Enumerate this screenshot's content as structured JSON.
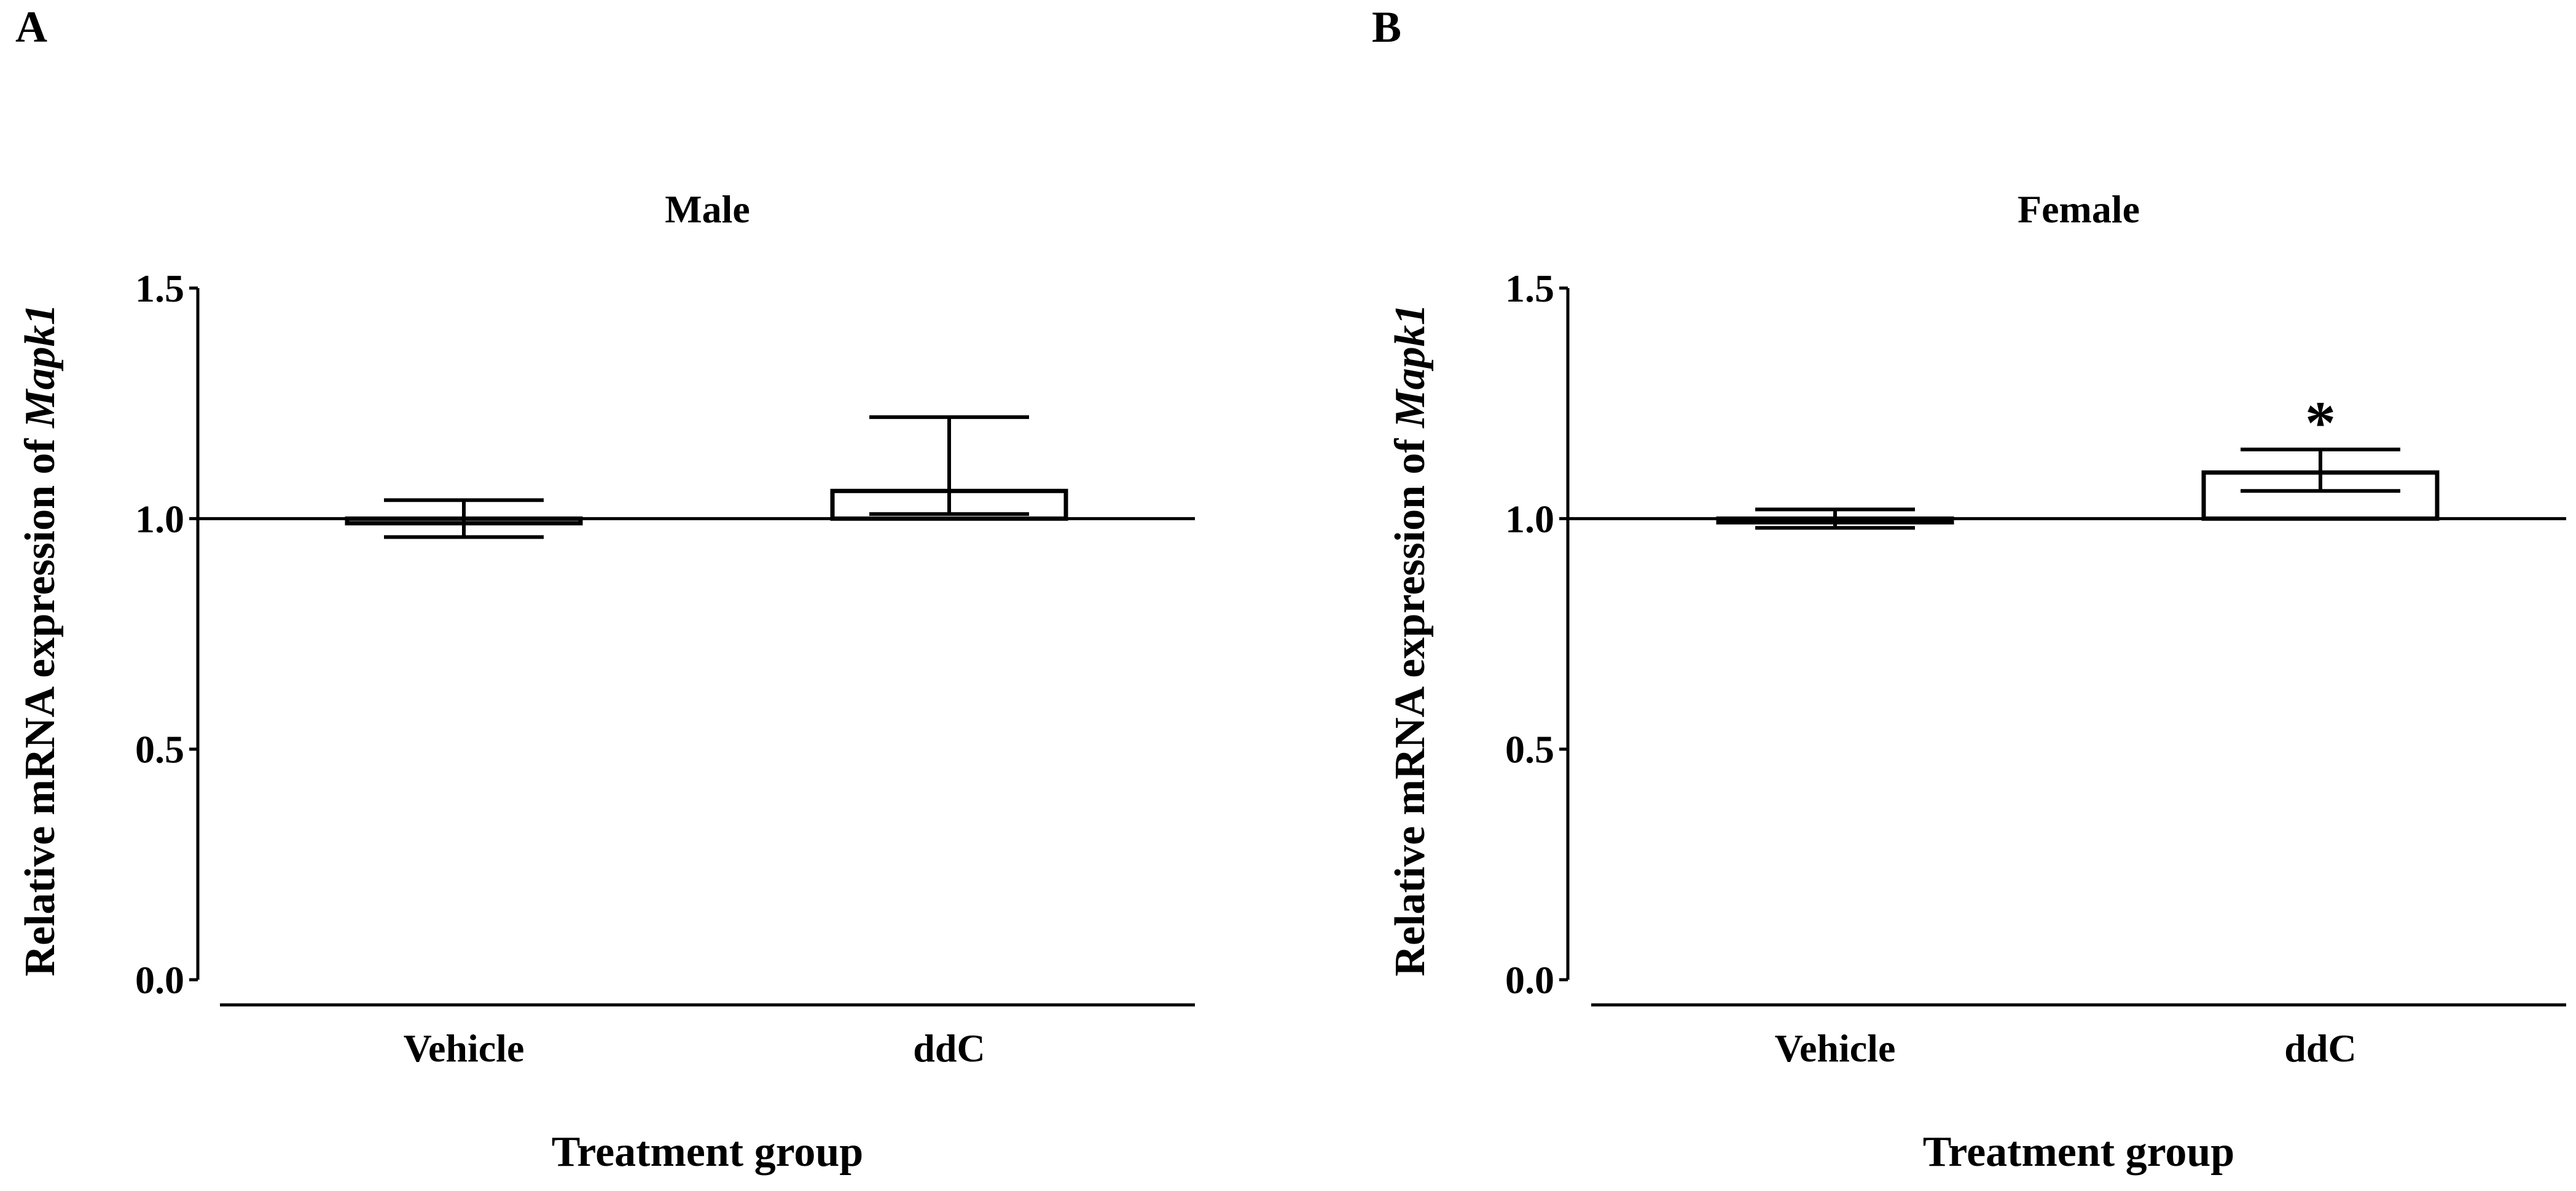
{
  "chart_data": [
    {
      "panel": "A",
      "type": "bar",
      "title": "Male",
      "xlabel": "Treatment group",
      "ylabel": "Relative mRNA expression of ",
      "ylabel_gene": "Mapk1",
      "categories": [
        "Vehicle",
        "ddC"
      ],
      "values": [
        0.99,
        1.06
      ],
      "error_upper": [
        1.04,
        1.22
      ],
      "error_lower": [
        0.96,
        1.01
      ],
      "baseline": 1.0,
      "ylim": [
        0,
        1.5
      ],
      "yticks": [
        "0.0",
        "0.5",
        "1.0",
        "1.5"
      ],
      "yticks_values": [
        0,
        0.5,
        1.0,
        1.5
      ],
      "annotations": [],
      "grid": false
    },
    {
      "panel": "B",
      "type": "bar",
      "title": "Female",
      "xlabel": "Treatment group",
      "ylabel": "Relative mRNA expression of ",
      "ylabel_gene": "Mapk1",
      "categories": [
        "Vehicle",
        "ddC"
      ],
      "values": [
        1.0,
        1.1
      ],
      "error_upper": [
        1.02,
        1.15
      ],
      "error_lower": [
        0.98,
        1.06
      ],
      "baseline": 1.0,
      "ylim": [
        0,
        1.5
      ],
      "yticks": [
        "0.0",
        "0.5",
        "1.0",
        "1.5"
      ],
      "yticks_values": [
        0,
        0.5,
        1.0,
        1.5
      ],
      "annotations": [
        {
          "category": "ddC",
          "text": "*"
        }
      ],
      "grid": false
    }
  ],
  "colors": {
    "ink": "#000000",
    "bar_fill": "#ffffff",
    "background": "#ffffff"
  }
}
